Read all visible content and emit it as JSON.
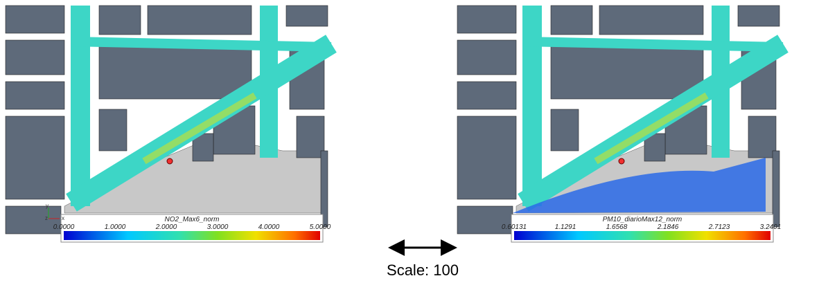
{
  "panels": [
    {
      "colorbar": {
        "title": "NO2_Max6_norm",
        "ticks": [
          "0.0000",
          "1.0000",
          "2.0000",
          "3.0000",
          "4.0000",
          "5.0000"
        ]
      },
      "axes": [
        "y",
        "z",
        "x"
      ]
    },
    {
      "colorbar": {
        "title": "PM10_diarioMax12_norm",
        "ticks": [
          "0.60131",
          "1.1291",
          "1.6568",
          "2.1846",
          "2.7123",
          "3.2401"
        ]
      }
    }
  ],
  "scale_label": "Scale: 100"
}
